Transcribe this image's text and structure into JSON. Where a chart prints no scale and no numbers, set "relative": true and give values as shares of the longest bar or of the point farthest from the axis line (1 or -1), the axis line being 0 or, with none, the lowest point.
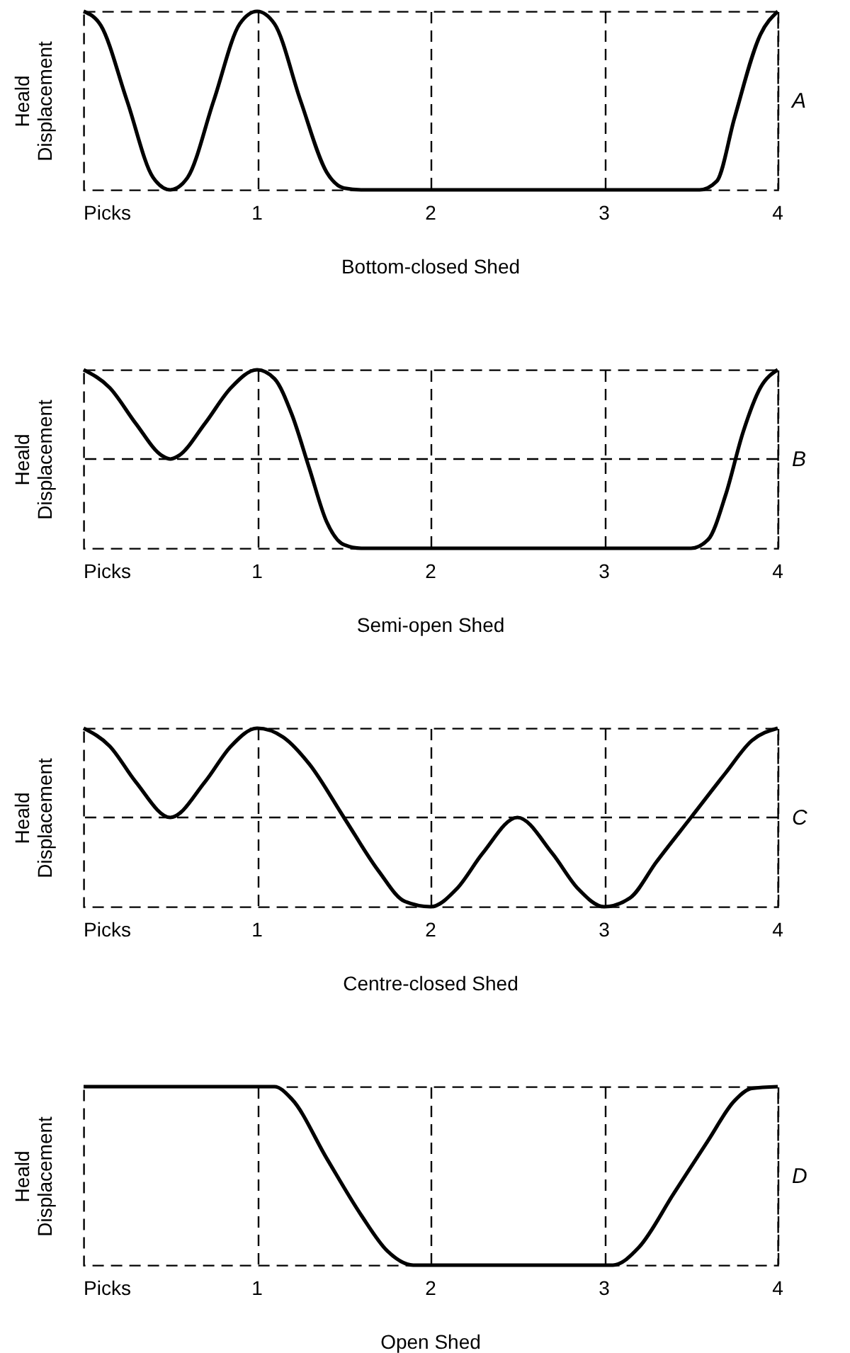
{
  "chart_data": [
    {
      "type": "line",
      "title": "Bottom-closed Shed",
      "xlabel": "Picks",
      "ylabel": "Heald Displacement",
      "relative": true,
      "xlim": [
        0,
        4
      ],
      "xticks": [
        1,
        2,
        3,
        4
      ],
      "grid": "x",
      "marker": "none",
      "line_style": "solid",
      "annotations": [
        "A"
      ],
      "series": [
        {
          "color": "#000000",
          "x": [
            0,
            0.1,
            0.25,
            0.4,
            0.5,
            0.6,
            0.75,
            0.9,
            1,
            1.1,
            1.25,
            1.4,
            1.5,
            1.6,
            3.55,
            3.65,
            3.75,
            3.9,
            4
          ],
          "values": [
            1,
            0.92,
            0.5,
            0.07,
            0,
            0.07,
            0.5,
            0.93,
            1,
            0.93,
            0.5,
            0.1,
            0.01,
            0,
            0,
            0.05,
            0.4,
            0.87,
            1
          ]
        }
      ]
    },
    {
      "type": "line",
      "title": "Semi-open Shed",
      "xlabel": "Picks",
      "ylabel": "Heald Displacement",
      "relative": true,
      "xlim": [
        0,
        4
      ],
      "xticks": [
        1,
        2,
        3,
        4
      ],
      "grid": "x",
      "marker": "none",
      "line_style": "solid",
      "annotations": [
        "B"
      ],
      "ref_lines": [
        {
          "axis": "y",
          "value": 0.5,
          "line_style": "dashed"
        }
      ],
      "series": [
        {
          "color": "#000000",
          "x": [
            0,
            0.15,
            0.3,
            0.45,
            0.5,
            0.55,
            0.7,
            0.85,
            1,
            1.1,
            1.2,
            1.3,
            1.4,
            1.5,
            1.6,
            3.5,
            3.6,
            3.7,
            3.8,
            3.9,
            4
          ],
          "values": [
            1,
            0.9,
            0.7,
            0.52,
            0.5,
            0.52,
            0.7,
            0.9,
            1,
            0.95,
            0.75,
            0.45,
            0.15,
            0.02,
            0,
            0,
            0.05,
            0.3,
            0.65,
            0.9,
            1
          ]
        }
      ]
    },
    {
      "type": "line",
      "title": "Centre-closed Shed",
      "xlabel": "Picks",
      "ylabel": "Heald Displacement",
      "relative": true,
      "xlim": [
        0,
        4
      ],
      "xticks": [
        1,
        2,
        3,
        4
      ],
      "grid": "x",
      "marker": "none",
      "line_style": "solid",
      "annotations": [
        "C"
      ],
      "ref_lines": [
        {
          "axis": "y",
          "value": 0.5,
          "line_style": "dashed"
        }
      ],
      "series": [
        {
          "color": "#000000",
          "x": [
            0,
            0.15,
            0.3,
            0.5,
            0.7,
            0.85,
            1,
            1.15,
            1.3,
            1.5,
            1.7,
            1.85,
            2,
            2.15,
            2.3,
            2.5,
            2.7,
            2.85,
            3,
            3.15,
            3.3,
            3.5,
            3.7,
            3.85,
            4
          ],
          "values": [
            1,
            0.9,
            0.7,
            0.5,
            0.7,
            0.9,
            1,
            0.95,
            0.8,
            0.5,
            0.2,
            0.03,
            0,
            0.1,
            0.3,
            0.5,
            0.3,
            0.1,
            0,
            0.05,
            0.25,
            0.5,
            0.75,
            0.93,
            1
          ]
        }
      ]
    },
    {
      "type": "line",
      "title": "Open Shed",
      "xlabel": "Picks",
      "ylabel": "Heald Displacement",
      "relative": true,
      "xlim": [
        0,
        4
      ],
      "xticks": [
        1,
        2,
        3,
        4
      ],
      "grid": "x",
      "marker": "none",
      "line_style": "solid",
      "annotations": [
        "D"
      ],
      "series": [
        {
          "color": "#000000",
          "x": [
            0,
            1.1,
            1.2,
            1.4,
            1.6,
            1.75,
            1.9,
            3.05,
            3.2,
            3.4,
            3.6,
            3.75,
            3.85,
            4
          ],
          "values": [
            1,
            1,
            0.93,
            0.6,
            0.28,
            0.08,
            0,
            0,
            0.1,
            0.4,
            0.7,
            0.92,
            0.99,
            1
          ]
        }
      ]
    }
  ]
}
